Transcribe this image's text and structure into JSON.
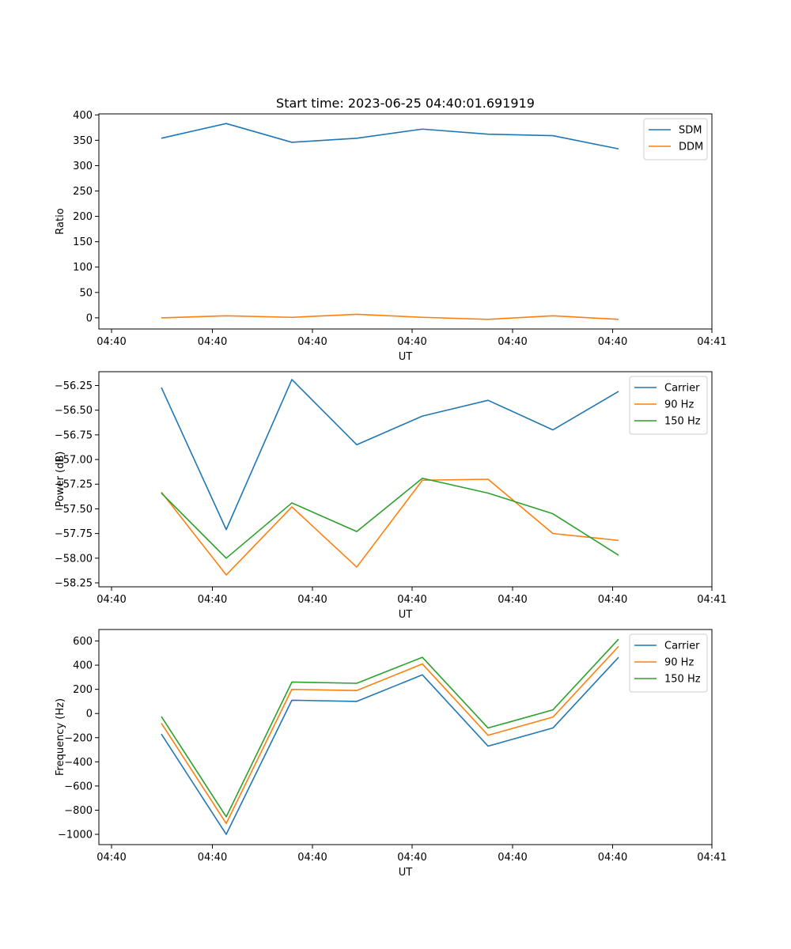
{
  "title": "Start time: 2023-06-25 04:40:01.691919",
  "chart_data": [
    {
      "type": "line",
      "title": "Start time: 2023-06-25 04:40:01.691919",
      "xlabel": "UT",
      "ylabel": "Ratio",
      "xticks": [
        "04:40",
        "04:40",
        "04:40",
        "04:40",
        "04:40",
        "04:40",
        "04:41"
      ],
      "yticks": [
        "0",
        "50",
        "100",
        "150",
        "200",
        "250",
        "300",
        "350",
        "400"
      ],
      "ytick_values": [
        0,
        50,
        100,
        150,
        200,
        250,
        300,
        350,
        400
      ],
      "ylim": [
        -22,
        402
      ],
      "legend_position": "upper right",
      "series": [
        {
          "name": "SDM",
          "color": "#1f77b4",
          "values": [
            354,
            383,
            346,
            354,
            372,
            362,
            359,
            333
          ]
        },
        {
          "name": "DDM",
          "color": "#ff7f0e",
          "values": [
            0,
            4,
            1,
            7,
            1,
            -3,
            4,
            -3
          ]
        }
      ]
    },
    {
      "type": "line",
      "xlabel": "UT",
      "ylabel": "Power (dB)",
      "xticks": [
        "04:40",
        "04:40",
        "04:40",
        "04:40",
        "04:40",
        "04:40",
        "04:41"
      ],
      "yticks": [
        "−58.25",
        "−58.00",
        "−57.75",
        "−57.50",
        "−57.25",
        "−57.00",
        "−56.75",
        "−56.50",
        "−56.25"
      ],
      "ytick_values": [
        -58.25,
        -58.0,
        -57.75,
        -57.5,
        -57.25,
        -57.0,
        -56.75,
        -56.5,
        -56.25
      ],
      "ylim": [
        -58.29,
        -56.11
      ],
      "legend_position": "upper right",
      "series": [
        {
          "name": "Carrier",
          "color": "#1f77b4",
          "values": [
            -56.27,
            -57.71,
            -56.19,
            -56.85,
            -56.56,
            -56.4,
            -56.7,
            -56.31
          ]
        },
        {
          "name": "90 Hz",
          "color": "#ff7f0e",
          "values": [
            -57.33,
            -58.17,
            -57.48,
            -58.09,
            -57.21,
            -57.2,
            -57.75,
            -57.82
          ]
        },
        {
          "name": "150 Hz",
          "color": "#2ca02c",
          "values": [
            -57.34,
            -58.0,
            -57.44,
            -57.73,
            -57.19,
            -57.34,
            -57.55,
            -57.97
          ]
        }
      ]
    },
    {
      "type": "line",
      "xlabel": "UT",
      "ylabel": "Frequency (Hz)",
      "xticks": [
        "04:40",
        "04:40",
        "04:40",
        "04:40",
        "04:40",
        "04:40",
        "04:41"
      ],
      "yticks": [
        "−1000",
        "−800",
        "−600",
        "−400",
        "−200",
        "0",
        "200",
        "400",
        "600"
      ],
      "ytick_values": [
        -1000,
        -800,
        -600,
        -400,
        -200,
        0,
        200,
        400,
        600
      ],
      "ylim": [
        -1085,
        695
      ],
      "legend_position": "upper right",
      "series": [
        {
          "name": "Carrier",
          "color": "#1f77b4",
          "values": [
            -170,
            -1000,
            110,
            100,
            320,
            -270,
            -120,
            465
          ]
        },
        {
          "name": "90 Hz",
          "color": "#ff7f0e",
          "values": [
            -80,
            -910,
            200,
            190,
            410,
            -180,
            -30,
            555
          ]
        },
        {
          "name": "150 Hz",
          "color": "#2ca02c",
          "values": [
            -25,
            -855,
            260,
            250,
            465,
            -120,
            30,
            615
          ]
        }
      ]
    }
  ]
}
